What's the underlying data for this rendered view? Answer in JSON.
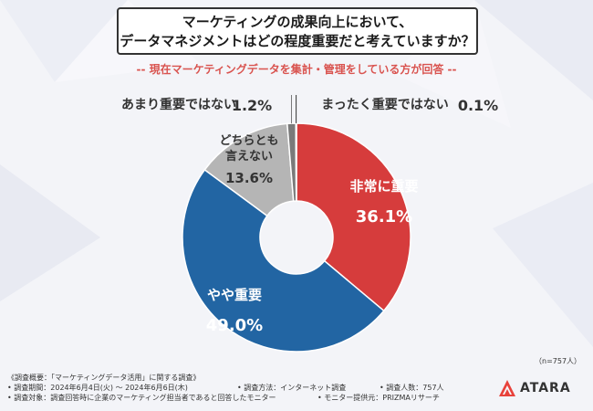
{
  "title": {
    "line1": "マーケティングの成果向上において、",
    "line2": "データマネジメントはどの程度重要だと考えていますか？"
  },
  "subtitle": "-- 現在マーケティングデータを集計・管理をしている方が回答 --",
  "n_label": "（n=757人）",
  "footer": {
    "overview": "《調査概要：「マーケティングデータ活用」に関する調査》",
    "period": "• 調査期間：2024年6月4日(火) ～ 2024年6月6日(木)",
    "method": "• 調査方法：インターネット調査",
    "count": "• 調査人数：757人",
    "target": "• 調査対象：調査回答時に企業のマーケティング担当者であると回答したモニター",
    "provider": "• モニター提供元：PRIZMAリサーチ"
  },
  "logo": {
    "text": "ATARA"
  },
  "chart_data": {
    "type": "pie",
    "categories": [
      "非常に重要",
      "やや重要",
      "どちらとも言えない",
      "あまり重要ではない",
      "まったく重要ではない"
    ],
    "values": [
      36.1,
      49.0,
      13.6,
      1.2,
      0.1
    ],
    "value_labels": [
      "36.1%",
      "49.0%",
      "13.6%",
      "1.2%",
      "0.1%"
    ],
    "colors": [
      "#d63c3c",
      "#2265a3",
      "#b5b5b5",
      "#7a7a7a",
      "#333333"
    ],
    "donut": true,
    "start_angle_deg": 0,
    "direction": "clockwise"
  }
}
